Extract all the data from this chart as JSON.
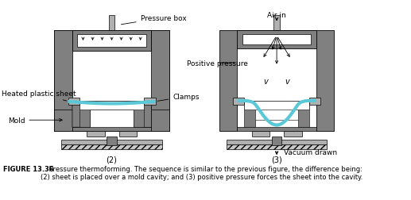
{
  "fig_width": 5.17,
  "fig_height": 2.53,
  "dpi": 100,
  "bg_color": "#ffffff",
  "gray_outer": "#808080",
  "gray_inner": "#b0b0b0",
  "gray_light": "#c8c8c8",
  "white": "#ffffff",
  "cyan": "#5bc8d8",
  "caption_bold": "FIGURE 13.36",
  "caption_text": "    Pressure thermoforming. The sequence is similar to the previous figure, the difference being:\n(2) sheet is placed over a mold cavity; and (3) positive pressure forces the sheet into the cavity.",
  "label_2": "(2)",
  "label_3": "(3)",
  "lbl_pressure_box": "Pressure box",
  "lbl_heated": "Heated plastic sheet",
  "lbl_mold": "Mold",
  "lbl_clamps": "Clamps",
  "lbl_pos_pressure": "Positive pressure",
  "lbl_air_in": "Air in",
  "lbl_vacuum": "Vacuum drawn"
}
